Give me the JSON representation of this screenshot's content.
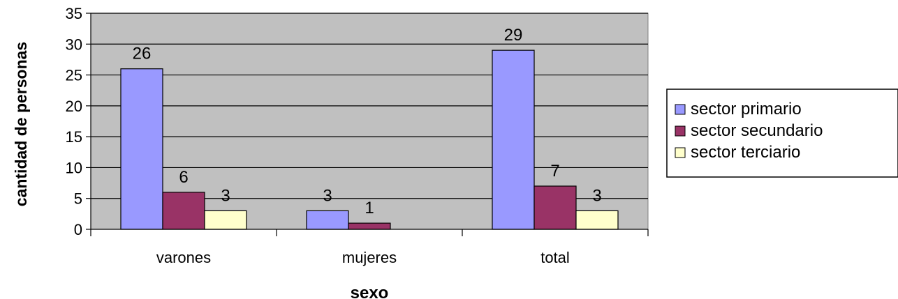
{
  "chart_data": {
    "type": "bar",
    "title": "",
    "xlabel": "sexo",
    "ylabel": "cantidad de personas",
    "categories": [
      "varones",
      "mujeres",
      "total"
    ],
    "series": [
      {
        "name": "sector primario",
        "values": [
          26,
          3,
          29
        ],
        "color": "#9999ff",
        "labels": [
          "26",
          "3",
          "29"
        ]
      },
      {
        "name": "sector secundario",
        "values": [
          6,
          1,
          7
        ],
        "color": "#993366",
        "labels": [
          "6",
          "1",
          "7"
        ]
      },
      {
        "name": "sector terciario",
        "values": [
          3,
          0,
          3
        ],
        "color": "#ffffcc",
        "labels": [
          "3",
          "",
          "3"
        ]
      }
    ],
    "ylim": [
      0,
      35
    ],
    "yticks": [
      "0",
      "5",
      "10",
      "15",
      "20",
      "25",
      "30",
      "35"
    ],
    "grid": true,
    "plot_background": "#c0c0c0",
    "legend_position": "right"
  }
}
